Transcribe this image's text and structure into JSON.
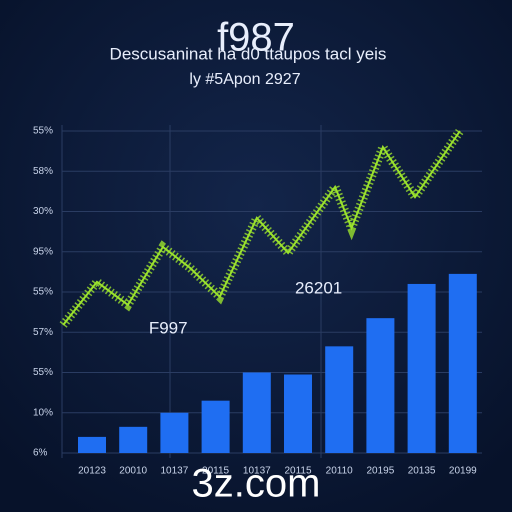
{
  "chart_data": {
    "type": "bar",
    "title": "f987",
    "subtitle": "Descusaninat ha d0 ttaupos tacl yeis",
    "subtitle2": "ly #5Apon 2927",
    "watermark": "3z.com",
    "categories": [
      "20123",
      "20010",
      "10137",
      "20115",
      "10137",
      "20115",
      "20110",
      "20195",
      "20135",
      "20199"
    ],
    "series": [
      {
        "type": "bar",
        "color": "#1f6ef2",
        "values": [
          0.4,
          0.65,
          1.0,
          1.3,
          2.0,
          1.95,
          2.65,
          3.35,
          4.2,
          4.45
        ]
      },
      {
        "type": "line",
        "color": "#9be22d",
        "x": [
          -0.7,
          0.12,
          0.87,
          1.72,
          2.38,
          3.1,
          4.0,
          4.76,
          5.9,
          6.3,
          7.06,
          7.84,
          8.93
        ],
        "values": [
          3.18,
          4.25,
          3.68,
          5.12,
          4.6,
          3.88,
          5.84,
          4.97,
          6.61,
          5.59,
          7.6,
          6.36,
          8.0
        ]
      }
    ],
    "annotations": [
      {
        "text": "26201",
        "x": 5.5,
        "y": 4.08
      },
      {
        "text": "F997",
        "x": 1.85,
        "y": 3.08
      }
    ],
    "ylim": [
      0,
      8
    ],
    "yticks": [
      {
        "value": 0,
        "label": "6%"
      },
      {
        "value": 1,
        "label": "10%"
      },
      {
        "value": 2,
        "label": "55%"
      },
      {
        "value": 3,
        "label": "57%"
      },
      {
        "value": 4,
        "label": "55%"
      },
      {
        "value": 5,
        "label": "95%"
      },
      {
        "value": 6,
        "label": "30%"
      },
      {
        "value": 7,
        "label": "58%"
      },
      {
        "value": 8,
        "label": "55%"
      }
    ],
    "grid": true
  }
}
